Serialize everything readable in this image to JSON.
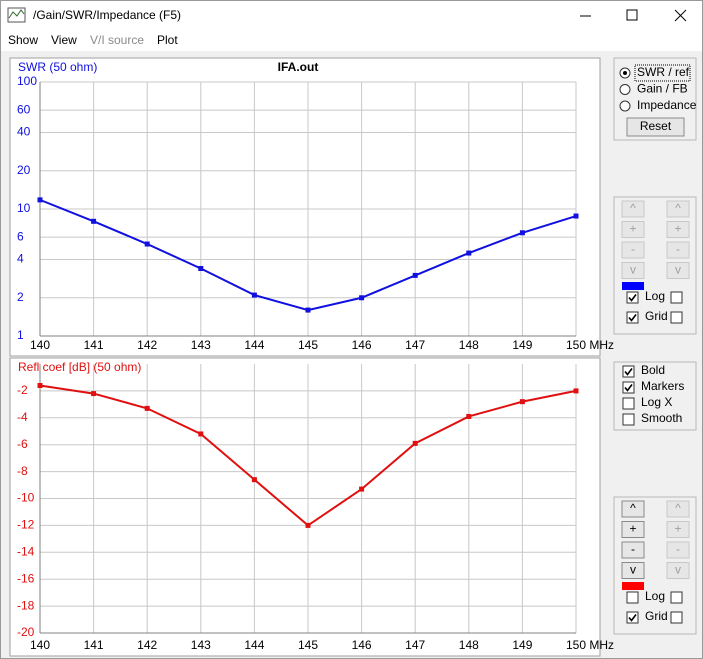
{
  "window": {
    "title": "/Gain/SWR/Impedance (F5)"
  },
  "menu": [
    {
      "label": "Show",
      "enabled": true
    },
    {
      "label": "View",
      "enabled": true
    },
    {
      "label": "V/I source",
      "enabled": false
    },
    {
      "label": "Plot",
      "enabled": true
    }
  ],
  "chart_data": [
    {
      "type": "line",
      "title": "IFA.out",
      "y_label": "SWR (50 ohm)",
      "x": [
        140,
        141,
        142,
        143,
        144,
        145,
        146,
        147,
        148,
        149,
        150
      ],
      "values": [
        11.8,
        8.0,
        5.3,
        3.4,
        2.1,
        1.6,
        2.0,
        3.0,
        4.5,
        6.5,
        8.8
      ],
      "color": "#1010e0",
      "xlim": [
        140,
        150
      ],
      "ylim": [
        1,
        100
      ],
      "log_y": true,
      "grid": true,
      "xticks": [
        140,
        141,
        142,
        143,
        144,
        145,
        146,
        147,
        148,
        149,
        {
          "value": 150,
          "label": "150 MHz"
        }
      ],
      "yticks": [
        1,
        2,
        4,
        6,
        10,
        20,
        40,
        60,
        100
      ]
    },
    {
      "type": "line",
      "y_label": "Refl coef [dB] (50 ohm)",
      "x": [
        140,
        141,
        142,
        143,
        144,
        145,
        146,
        147,
        148,
        149,
        150
      ],
      "values": [
        -1.6,
        -2.2,
        -3.3,
        -5.2,
        -8.6,
        -12.0,
        -9.3,
        -5.9,
        -3.9,
        -2.8,
        -2.0
      ],
      "color": "#e01010",
      "xlim": [
        140,
        150
      ],
      "ylim": [
        -20,
        0
      ],
      "log_y": false,
      "grid": true,
      "xticks": [
        140,
        141,
        142,
        143,
        144,
        145,
        146,
        147,
        148,
        149,
        {
          "value": 150,
          "label": "150 MHz"
        }
      ],
      "yticks": [
        -2,
        -4,
        -6,
        -8,
        -10,
        -12,
        -14,
        -16,
        -18,
        -20
      ]
    }
  ],
  "controls": {
    "plot_type": {
      "options": [
        "SWR / ref",
        "Gain / FB",
        "Impedance"
      ],
      "selected": 0
    },
    "reset": "Reset",
    "side_panels": [
      {
        "buttons": [
          "^",
          "+",
          "-",
          "v"
        ],
        "enabled": false,
        "color": "#0000ff",
        "log": {
          "label": "Log",
          "checked": true
        },
        "grid": {
          "label": "Grid",
          "checked": true
        }
      },
      {
        "buttons": [
          "^",
          "+",
          "-",
          "v"
        ],
        "enabled": true,
        "color": "#ff0000",
        "log": {
          "label": "Log",
          "checked": false
        },
        "grid": {
          "label": "Grid",
          "checked": true
        }
      }
    ],
    "display": [
      {
        "label": "Bold",
        "checked": true
      },
      {
        "label": "Markers",
        "checked": true
      },
      {
        "label": "Log X",
        "checked": false
      },
      {
        "label": "Smooth",
        "checked": false
      }
    ]
  }
}
